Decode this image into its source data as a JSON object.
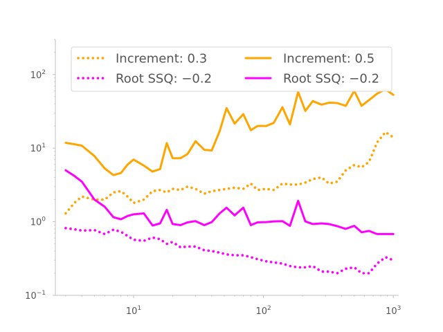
{
  "chart_data": {
    "type": "line",
    "x_scale": "log",
    "y_scale": "log",
    "xlim": [
      2.5,
      1100
    ],
    "ylim": [
      0.1,
      300
    ],
    "grid": false,
    "legend_placement": "top",
    "legend_columns": 2,
    "x_ticks": [
      {
        "value": 10,
        "base": "10",
        "exp": "1"
      },
      {
        "value": 100,
        "base": "10",
        "exp": "2"
      },
      {
        "value": 1000,
        "base": "10",
        "exp": "3"
      }
    ],
    "y_ticks": [
      {
        "value": 0.1,
        "base": "10",
        "exp": "−1"
      },
      {
        "value": 1,
        "base": "10",
        "exp": "0"
      },
      {
        "value": 10,
        "base": "10",
        "exp": "1"
      },
      {
        "value": 100,
        "base": "10",
        "exp": "2"
      }
    ],
    "x": [
      3,
      3.5,
      4,
      5,
      6,
      7,
      8,
      9,
      10,
      12,
      14,
      16,
      18,
      20,
      23,
      26,
      30,
      35,
      40,
      46,
      52,
      60,
      70,
      80,
      90,
      105,
      120,
      140,
      160,
      185,
      210,
      240,
      280,
      320,
      370,
      430,
      500,
      570,
      650,
      750,
      870,
      1000
    ],
    "series": [
      {
        "name": "Increment: 0.3",
        "color": "#ffa500",
        "dash": "dotted",
        "values": [
          1.3,
          1.8,
          2.2,
          2.0,
          2.0,
          2.5,
          2.6,
          2.2,
          1.8,
          2.0,
          2.6,
          2.7,
          2.5,
          2.8,
          2.7,
          3.0,
          2.8,
          2.4,
          2.6,
          2.7,
          2.8,
          2.9,
          2.8,
          3.3,
          2.7,
          2.8,
          2.7,
          3.3,
          3.2,
          3.2,
          3.4,
          3.8,
          4.0,
          3.3,
          3.5,
          5.0,
          5.9,
          5.5,
          6.5,
          12.0,
          16.5,
          14.0
        ]
      },
      {
        "name": "Increment: 0.5",
        "color": "#ffa500",
        "dash": "solid",
        "values": [
          11.8,
          11.3,
          10.8,
          7.8,
          5.3,
          4.3,
          4.6,
          6.0,
          7.0,
          5.8,
          4.8,
          5.2,
          11.7,
          7.3,
          7.3,
          8.3,
          12.4,
          9.5,
          9.3,
          17.0,
          35.0,
          21.5,
          29.0,
          17.5,
          20.0,
          20.0,
          22.0,
          36.0,
          21.0,
          58.0,
          32.0,
          43.5,
          39.0,
          41.5,
          41.0,
          37.5,
          60.0,
          37.5,
          45.0,
          55.0,
          63.0,
          53.0
        ]
      },
      {
        "name": "Root SSQ: −0.2",
        "color": "#ff00ff",
        "dash": "dotted",
        "values": [
          0.82,
          0.79,
          0.76,
          0.77,
          0.68,
          0.78,
          0.73,
          0.64,
          0.57,
          0.55,
          0.61,
          0.58,
          0.5,
          0.53,
          0.45,
          0.46,
          0.46,
          0.41,
          0.4,
          0.38,
          0.36,
          0.35,
          0.35,
          0.33,
          0.31,
          0.29,
          0.28,
          0.27,
          0.25,
          0.24,
          0.24,
          0.25,
          0.21,
          0.21,
          0.2,
          0.23,
          0.24,
          0.2,
          0.2,
          0.27,
          0.33,
          0.3
        ]
      },
      {
        "name": "Root SSQ: −0.2",
        "color": "#ff00ff",
        "dash": "solid",
        "values": [
          5.0,
          4.2,
          3.5,
          2.0,
          1.6,
          1.15,
          1.08,
          1.2,
          1.26,
          1.3,
          0.89,
          0.95,
          1.45,
          0.93,
          0.9,
          0.98,
          1.02,
          0.9,
          0.99,
          1.3,
          1.55,
          1.22,
          1.55,
          0.9,
          0.98,
          0.99,
          1.01,
          1.02,
          0.88,
          1.92,
          1.01,
          0.93,
          0.95,
          0.93,
          0.87,
          0.8,
          0.88,
          0.72,
          0.75,
          0.68,
          0.68,
          0.68
        ]
      }
    ]
  }
}
